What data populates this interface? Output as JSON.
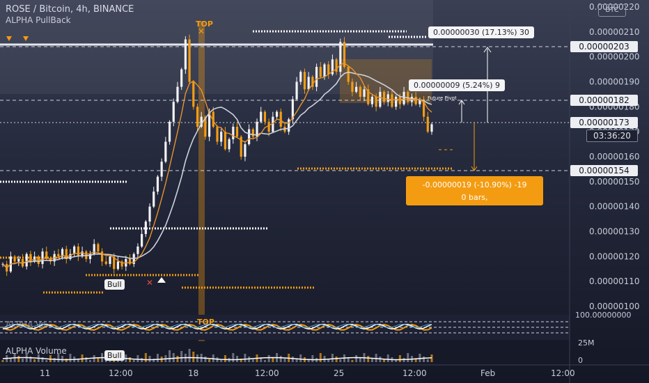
{
  "header": {
    "symbol": "ROSE / Bitcoin, 4h, BINANCE",
    "indicator": "ALPHA PullBack",
    "currency_button": "BTC"
  },
  "price_axis": {
    "ticks": [
      "0.00000100",
      "0.00000110",
      "0.00000120",
      "0.00000130",
      "0.00000140",
      "0.00000150",
      "0.00000160",
      "0.00000170",
      "0.00000180",
      "0.00000190",
      "0.00000200",
      "0.00000210",
      "0.00000220"
    ],
    "tags": {
      "top_level": "0.00000203",
      "mid_level": "0.00000182",
      "current": "0.00000173",
      "countdown": "03:36:20",
      "bottom_level": "0.00000154"
    }
  },
  "callouts": {
    "up_big": "0.00000030 (17.13%) 30",
    "up_small": "0.00000009 (5.24%) 9",
    "future_pivot": "Future Pivot",
    "down_line1": "-0.00000019 (-10.90%) -19",
    "down_line2": "0 bars,"
  },
  "markers": {
    "top_label": "TOP",
    "top_label_lower": "TOP",
    "bull_label": "Bull",
    "bull_label_lower": "Bull"
  },
  "x_axis": {
    "labels": [
      "11",
      "12:00",
      "18",
      "12:00",
      "25",
      "12:00",
      "Feb",
      "12:00"
    ]
  },
  "sub_panels": {
    "oscillator_label": "ALPHA Vo...",
    "oscillator_axis": "100.00000000",
    "volume_label": "ALPHA Volume",
    "volume_axis_top": "25M",
    "volume_axis_zero": "0"
  },
  "colors": {
    "up_candle": "#f2f2f5",
    "down_candle": "#f39c12",
    "ma_light": "#cfd2dc",
    "ma_orange": "#e8932a",
    "accent": "#f39c12"
  },
  "chart_data": {
    "type": "candlestick",
    "symbol": "ROSE / Bitcoin",
    "interval": "4h",
    "exchange": "BINANCE",
    "ylim": [
      1e-06,
      2.2e-06
    ],
    "levels": {
      "resistance_top": 2.03e-06,
      "pivot": 1.82e-06,
      "current_price": 1.73e-06,
      "support": 1.54e-06
    },
    "closes": [
      1.17e-06,
      1.14e-06,
      1.2e-06,
      1.18e-06,
      1.19e-06,
      1.16e-06,
      1.21e-06,
      1.18e-06,
      1.2e-06,
      1.17e-06,
      1.22e-06,
      1.19e-06,
      1.18e-06,
      1.21e-06,
      1.2e-06,
      1.23e-06,
      1.19e-06,
      1.21e-06,
      1.24e-06,
      1.2e-06,
      1.22e-06,
      1.19e-06,
      1.21e-06,
      1.25e-06,
      1.22e-06,
      1.18e-06,
      1.17e-06,
      1.2e-06,
      1.15e-06,
      1.18e-06,
      1.16e-06,
      1.19e-06,
      1.17e-06,
      1.21e-06,
      1.24e-06,
      1.29e-06,
      1.34e-06,
      1.4e-06,
      1.46e-06,
      1.52e-06,
      1.58e-06,
      1.66e-06,
      1.74e-06,
      1.82e-06,
      1.88e-06,
      1.95e-06,
      2.07e-06,
      1.9e-06,
      1.8e-06,
      1.72e-06,
      1.76e-06,
      1.68e-06,
      1.78e-06,
      1.72e-06,
      1.66e-06,
      1.7e-06,
      1.63e-06,
      1.67e-06,
      1.72e-06,
      1.68e-06,
      1.6e-06,
      1.65e-06,
      1.71e-06,
      1.68e-06,
      1.74e-06,
      1.78e-06,
      1.74e-06,
      1.7e-06,
      1.76e-06,
      1.78e-06,
      1.72e-06,
      1.7e-06,
      1.75e-06,
      1.83e-06,
      1.9e-06,
      1.94e-06,
      1.87e-06,
      1.92e-06,
      1.88e-06,
      1.96e-06,
      1.92e-06,
      1.97e-06,
      1.93e-06,
      1.99e-06,
      1.94e-06,
      2.06e-06,
      1.96e-06,
      1.9e-06,
      1.86e-06,
      1.88e-06,
      1.84e-06,
      1.87e-06,
      1.81e-06,
      1.84e-06,
      1.8e-06,
      1.86e-06,
      1.82e-06,
      1.85e-06,
      1.8e-06,
      1.84e-06,
      1.81e-06,
      1.86e-06,
      1.82e-06,
      1.84e-06,
      1.81e-06,
      1.83e-06,
      1.76e-06,
      1.7e-06,
      1.73e-06
    ],
    "annotations": [
      {
        "type": "TOP",
        "note": "TOP marker"
      },
      {
        "type": "Bull",
        "note": "Bull marker"
      },
      {
        "measure": "0.00000030 (17.13%) 30"
      },
      {
        "measure": "0.00000009 (5.24%) 9"
      },
      {
        "measure": "-0.00000019 (-10.90%) -19"
      }
    ],
    "xlabels": [
      "11",
      "12:00",
      "18",
      "12:00",
      "25",
      "12:00",
      "Feb",
      "12:00"
    ]
  }
}
